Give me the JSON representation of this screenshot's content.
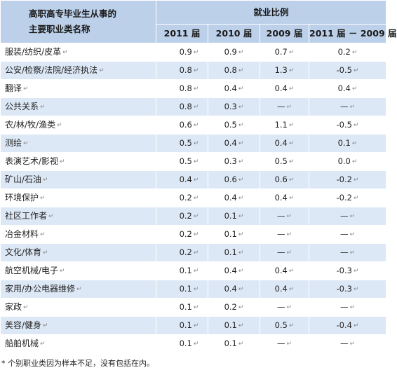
{
  "header": {
    "name_line1": "高职高专毕业生从事的",
    "name_line2": "主要职业类名称",
    "group_label": "就业比例",
    "col_2011": "2011 届",
    "col_2010": "2010 届",
    "col_2009": "2009 届",
    "col_change": "2011 届 － 2009 届"
  },
  "rows": [
    {
      "name": "服装/纺织/皮革",
      "y2011": "0.9",
      "y2010": "0.9",
      "y2009": "0.7",
      "change": "0.2"
    },
    {
      "name": "公安/检察/法院/经济执法",
      "y2011": "0.8",
      "y2010": "0.8",
      "y2009": "1.3",
      "change": "-0.5"
    },
    {
      "name": "翻译",
      "y2011": "0.8",
      "y2010": "0.4",
      "y2009": "0.4",
      "change": "0.4"
    },
    {
      "name": "公共关系",
      "y2011": "0.8",
      "y2010": "0.3",
      "y2009": "—",
      "change": "—"
    },
    {
      "name": "农/林/牧/渔类",
      "y2011": "0.6",
      "y2010": "0.5",
      "y2009": "1.1",
      "change": "-0.5"
    },
    {
      "name": "测绘",
      "y2011": "0.5",
      "y2010": "0.4",
      "y2009": "0.4",
      "change": "0.1"
    },
    {
      "name": "表演艺术/影视",
      "y2011": "0.5",
      "y2010": "0.3",
      "y2009": "0.5",
      "change": "0.0"
    },
    {
      "name": "矿山/石油",
      "y2011": "0.4",
      "y2010": "0.6",
      "y2009": "0.6",
      "change": "-0.2"
    },
    {
      "name": "环境保护",
      "y2011": "0.2",
      "y2010": "0.4",
      "y2009": "0.4",
      "change": "-0.2"
    },
    {
      "name": "社区工作者",
      "y2011": "0.2",
      "y2010": "0.1",
      "y2009": "—",
      "change": "—"
    },
    {
      "name": "冶金材料",
      "y2011": "0.2",
      "y2010": "0.1",
      "y2009": "—",
      "change": "—"
    },
    {
      "name": "文化/体育",
      "y2011": "0.2",
      "y2010": "0.1",
      "y2009": "—",
      "change": "—"
    },
    {
      "name": "航空机械/电子",
      "y2011": "0.1",
      "y2010": "0.4",
      "y2009": "0.4",
      "change": "-0.3"
    },
    {
      "name": "家用/办公电器维修",
      "y2011": "0.1",
      "y2010": "0.4",
      "y2009": "0.4",
      "change": "-0.3"
    },
    {
      "name": "家政",
      "y2011": "0.1",
      "y2010": "0.2",
      "y2009": "—",
      "change": "—"
    },
    {
      "name": "美容/健身",
      "y2011": "0.1",
      "y2010": "0.1",
      "y2009": "0.5",
      "change": "-0.4"
    },
    {
      "name": "船舶机械",
      "y2011": "0.1",
      "y2010": "0.1",
      "y2009": "—",
      "change": "—"
    }
  ],
  "footnote": "* 个别职业类因为样本不足，没有包括在内。",
  "colors": {
    "header_bg": "#bcd0ea",
    "stripe_bg": "#dde8f6"
  }
}
